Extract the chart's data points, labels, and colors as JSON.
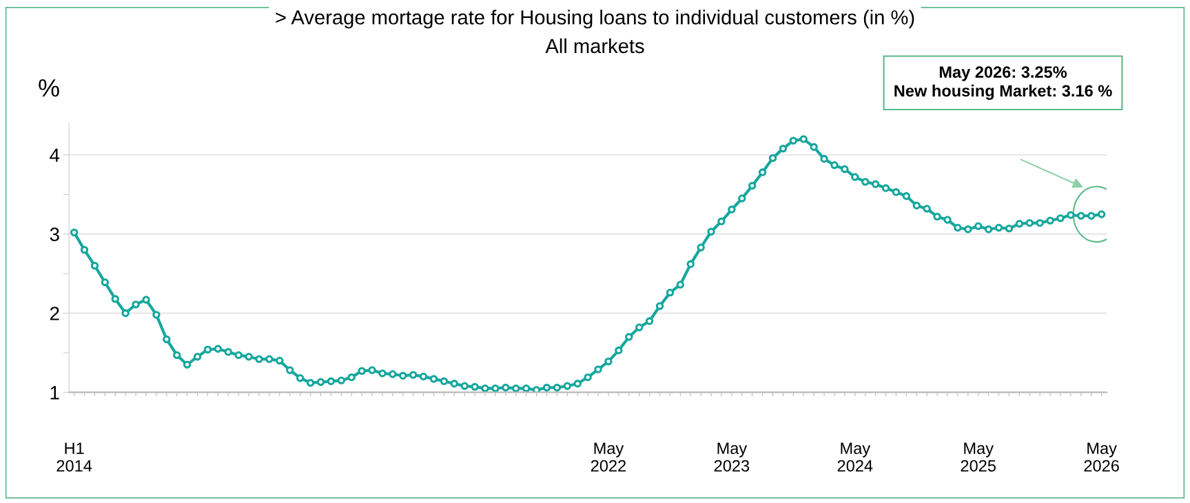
{
  "chart_data": {
    "type": "line",
    "title": "> Average mortage rate for Housing loans to individual customers (in %)",
    "subtitle": "All markets",
    "ylabel": "%",
    "categories": [
      "H1\n2014",
      null,
      null,
      null,
      null,
      null,
      null,
      null,
      null,
      null,
      null,
      null,
      null,
      null,
      null,
      null,
      null,
      null,
      null,
      null,
      null,
      null,
      null,
      null,
      null,
      null,
      null,
      null,
      null,
      null,
      null,
      null,
      null,
      null,
      null,
      null,
      null,
      null,
      null,
      null,
      null,
      null,
      null,
      null,
      null,
      null,
      null,
      null,
      null,
      null,
      null,
      null,
      "May\n2022",
      null,
      null,
      null,
      null,
      null,
      null,
      null,
      null,
      null,
      null,
      null,
      "May\n2023",
      null,
      null,
      null,
      null,
      null,
      null,
      null,
      null,
      null,
      null,
      null,
      "May\n2024",
      null,
      null,
      null,
      null,
      null,
      null,
      null,
      null,
      null,
      null,
      null,
      "May\n2025",
      null,
      null,
      null,
      null,
      null,
      null,
      null,
      null,
      null,
      null,
      null,
      "May\n2026"
    ],
    "series": [
      {
        "color": "#17a79d",
        "values": [
          3.02,
          2.8,
          2.6,
          2.39,
          2.18,
          2.0,
          2.11,
          2.17,
          1.98,
          1.67,
          1.47,
          1.35,
          1.45,
          1.54,
          1.55,
          1.51,
          1.47,
          1.45,
          1.42,
          1.42,
          1.4,
          1.28,
          1.18,
          1.12,
          1.13,
          1.14,
          1.15,
          1.19,
          1.27,
          1.28,
          1.24,
          1.23,
          1.21,
          1.22,
          1.2,
          1.17,
          1.14,
          1.11,
          1.08,
          1.07,
          1.05,
          1.05,
          1.06,
          1.05,
          1.05,
          1.03,
          1.06,
          1.06,
          1.08,
          1.11,
          1.19,
          1.29,
          1.39,
          1.53,
          1.7,
          1.82,
          1.9,
          2.09,
          2.26,
          2.36,
          2.62,
          2.83,
          3.03,
          3.16,
          3.31,
          3.45,
          3.61,
          3.78,
          3.96,
          4.08,
          4.18,
          4.2,
          4.1,
          3.95,
          3.87,
          3.82,
          3.72,
          3.66,
          3.63,
          3.58,
          3.53,
          3.48,
          3.36,
          3.32,
          3.22,
          3.18,
          3.08,
          3.06,
          3.1,
          3.06,
          3.08,
          3.07,
          3.13,
          3.14,
          3.14,
          3.17,
          3.2,
          3.24,
          3.23,
          3.23,
          3.25
        ]
      }
    ],
    "ylim": [
      1,
      4.4
    ],
    "yticks": [
      1,
      {
        "value": 1.5,
        "label": null
      },
      2,
      {
        "value": 2.5,
        "label": null
      },
      3,
      {
        "value": 3.5,
        "label": null
      },
      4
    ],
    "grid": "y",
    "marker": "circle",
    "line_style": "solid",
    "annotations": [
      "May 2026: 3.25%\nNew housing Market: 3.16 %"
    ]
  }
}
